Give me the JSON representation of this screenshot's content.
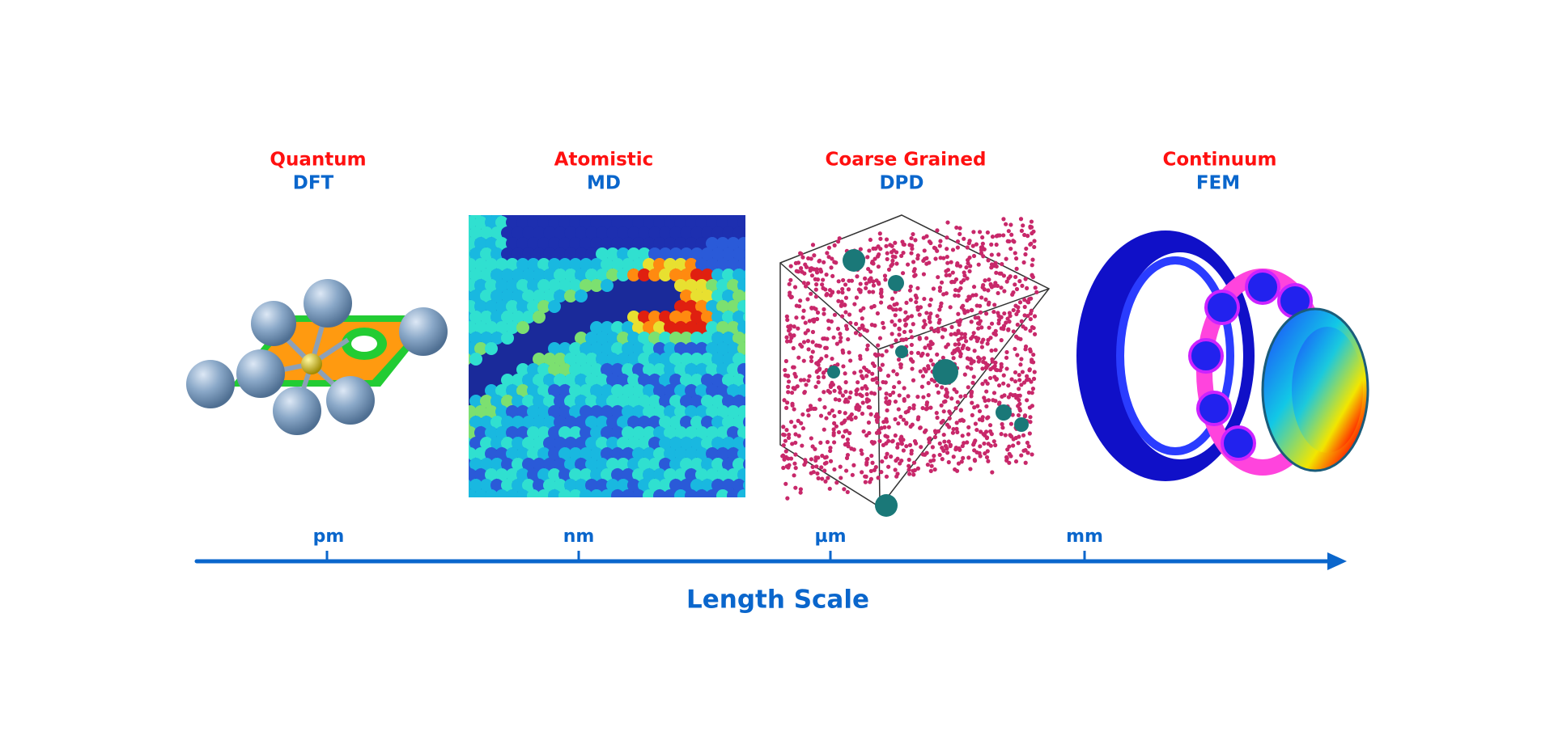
{
  "columns": [
    {
      "title": "Quantum",
      "method": "DFT"
    },
    {
      "title": "Atomistic",
      "method": "MD"
    },
    {
      "title": "Coarse Grained",
      "method": "DPD"
    },
    {
      "title": "Continuum",
      "method": "FEM"
    }
  ],
  "axis": {
    "ticks": [
      "pm",
      "nm",
      "µm",
      "mm"
    ],
    "label": "Length Scale"
  }
}
